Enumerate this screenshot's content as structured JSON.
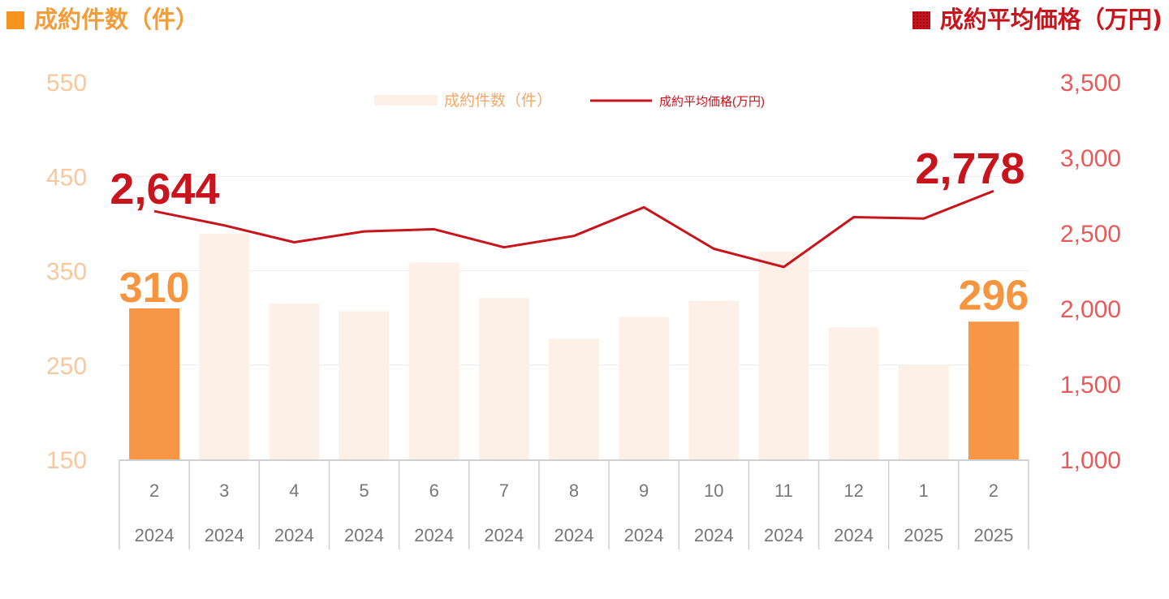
{
  "header": {
    "left_title": "成約件数（件）",
    "right_title": "成約平均価格（万円)"
  },
  "colors": {
    "bar_highlight": "#f79646",
    "bar_normal": "#fdf1e7",
    "line": "#c8141c",
    "left_axis_text": "#f8c79c",
    "right_axis_text": "#e85a5a",
    "left_title": "#f39c3a",
    "right_title": "#c8141c",
    "left_callout": "#f5953f",
    "right_callout": "#c8141c"
  },
  "chart_data": {
    "type": "bar+line",
    "categories": [
      {
        "month": "2",
        "year": "2024"
      },
      {
        "month": "3",
        "year": "2024"
      },
      {
        "month": "4",
        "year": "2024"
      },
      {
        "month": "5",
        "year": "2024"
      },
      {
        "month": "6",
        "year": "2024"
      },
      {
        "month": "7",
        "year": "2024"
      },
      {
        "month": "8",
        "year": "2024"
      },
      {
        "month": "9",
        "year": "2024"
      },
      {
        "month": "10",
        "year": "2024"
      },
      {
        "month": "11",
        "year": "2024"
      },
      {
        "month": "12",
        "year": "2024"
      },
      {
        "month": "1",
        "year": "2025"
      },
      {
        "month": "2",
        "year": "2025"
      }
    ],
    "series": [
      {
        "name": "成約件数（件）",
        "type": "bar",
        "axis": "left",
        "values": [
          310,
          389,
          315,
          307,
          359,
          321,
          278,
          301,
          318,
          370,
          290,
          250,
          296
        ],
        "highlight": [
          true,
          false,
          false,
          false,
          false,
          false,
          false,
          false,
          false,
          false,
          false,
          false,
          true
        ]
      },
      {
        "name": "成約平均価格(万円)",
        "type": "line",
        "axis": "right",
        "values": [
          2644,
          2550,
          2438,
          2510,
          2525,
          2405,
          2480,
          2670,
          2395,
          2275,
          2605,
          2595,
          2778
        ]
      }
    ],
    "left_axis": {
      "min": 150,
      "max": 550,
      "ticks": [
        "150",
        "250",
        "350",
        "450",
        "550"
      ]
    },
    "right_axis": {
      "min": 1000,
      "max": 3500,
      "ticks": [
        "1,000",
        "1,500",
        "2,000",
        "2,500",
        "3,000",
        "3,500"
      ]
    },
    "callouts": {
      "bar_first": "310",
      "bar_last": "296",
      "line_first": "2,644",
      "line_last": "2,778"
    },
    "legend": {
      "placement": "top-center"
    },
    "grid": true
  }
}
